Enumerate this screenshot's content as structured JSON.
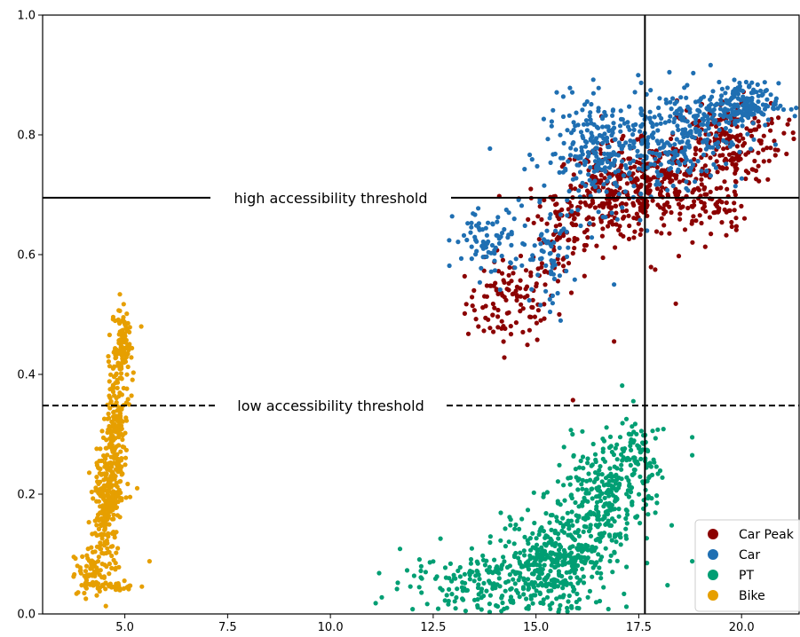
{
  "chart_data": {
    "type": "scatter",
    "title": "",
    "xlabel": "",
    "ylabel": "",
    "xlim": [
      3.0,
      21.4
    ],
    "ylim": [
      0.0,
      1.0
    ],
    "xticks": [
      "5.0",
      "7.5",
      "10.0",
      "12.5",
      "15.0",
      "17.5",
      "20.0"
    ],
    "yticks": [
      "0.0",
      "0.2",
      "0.4",
      "0.6",
      "0.8",
      "1.0"
    ],
    "legend": {
      "placement": "bottom-right"
    },
    "reference_lines": {
      "vertical_x": 17.65,
      "high_threshold": {
        "y": 0.695,
        "label": "high accessibility threshold",
        "style": "solid"
      },
      "low_threshold": {
        "y": 0.348,
        "label": "low accessibility threshold",
        "style": "dashed"
      }
    },
    "series": [
      {
        "name": "Car Peak",
        "color": "#8b0000",
        "clusters": [
          {
            "cx": 14.4,
            "cy": 0.52,
            "sx": 0.55,
            "sy": 0.035,
            "n": 110
          },
          {
            "cx": 15.5,
            "cy": 0.64,
            "sx": 0.4,
            "sy": 0.05,
            "n": 70
          },
          {
            "cx": 16.9,
            "cy": 0.7,
            "sx": 0.7,
            "sy": 0.04,
            "n": 260
          },
          {
            "cx": 18.2,
            "cy": 0.72,
            "sx": 0.7,
            "sy": 0.035,
            "n": 160
          },
          {
            "cx": 19.6,
            "cy": 0.79,
            "sx": 0.7,
            "sy": 0.035,
            "n": 200
          },
          {
            "cx": 19.3,
            "cy": 0.68,
            "sx": 0.4,
            "sy": 0.03,
            "n": 60
          }
        ],
        "points": [
          [
            16.9,
            0.455
          ],
          [
            15.9,
            0.357
          ],
          [
            17.9,
            0.575
          ],
          [
            18.4,
            0.518
          ],
          [
            13.6,
            0.48
          ]
        ]
      },
      {
        "name": "Car",
        "color": "#1f6fb2",
        "clusters": [
          {
            "cx": 13.9,
            "cy": 0.62,
            "sx": 0.45,
            "sy": 0.03,
            "n": 80
          },
          {
            "cx": 15.3,
            "cy": 0.6,
            "sx": 0.3,
            "sy": 0.04,
            "n": 60
          },
          {
            "cx": 16.7,
            "cy": 0.77,
            "sx": 0.75,
            "sy": 0.045,
            "n": 280
          },
          {
            "cx": 18.6,
            "cy": 0.8,
            "sx": 0.75,
            "sy": 0.04,
            "n": 220
          },
          {
            "cx": 19.9,
            "cy": 0.85,
            "sx": 0.5,
            "sy": 0.018,
            "n": 180
          }
        ],
        "points": [
          [
            15.6,
            0.49
          ],
          [
            16.9,
            0.55
          ],
          [
            17.7,
            0.64
          ]
        ]
      },
      {
        "name": "PT",
        "color": "#009e73",
        "clusters": [
          {
            "cx": 13.8,
            "cy": 0.055,
            "sx": 1.0,
            "sy": 0.025,
            "n": 170
          },
          {
            "cx": 15.4,
            "cy": 0.09,
            "sx": 0.6,
            "sy": 0.045,
            "n": 340
          },
          {
            "cx": 16.6,
            "cy": 0.19,
            "sx": 0.55,
            "sy": 0.05,
            "n": 280
          },
          {
            "cx": 17.4,
            "cy": 0.27,
            "sx": 0.3,
            "sy": 0.035,
            "n": 80
          }
        ],
        "points": [
          [
            12.0,
            0.008
          ],
          [
            11.1,
            0.018
          ],
          [
            18.8,
            0.295
          ],
          [
            18.2,
            0.048
          ],
          [
            18.8,
            0.088
          ],
          [
            17.7,
            0.085
          ],
          [
            18.3,
            0.148
          ],
          [
            18.8,
            0.265
          ],
          [
            17.2,
            0.012
          ]
        ]
      },
      {
        "name": "Bike",
        "color": "#e69f00",
        "clusters": [
          {
            "cx": 4.25,
            "cy": 0.07,
            "sx": 0.22,
            "sy": 0.022,
            "n": 90
          },
          {
            "cx": 4.55,
            "cy": 0.19,
            "sx": 0.15,
            "sy": 0.05,
            "n": 230
          },
          {
            "cx": 4.8,
            "cy": 0.32,
            "sx": 0.12,
            "sy": 0.06,
            "n": 200
          },
          {
            "cx": 4.95,
            "cy": 0.45,
            "sx": 0.1,
            "sy": 0.03,
            "n": 90
          },
          {
            "cx": 4.9,
            "cy": 0.046,
            "sx": 0.2,
            "sy": 0.004,
            "n": 25
          }
        ],
        "points": [
          [
            5.6,
            0.088
          ],
          [
            5.4,
            0.48
          ],
          [
            5.3,
            0.21
          ]
        ]
      }
    ]
  }
}
